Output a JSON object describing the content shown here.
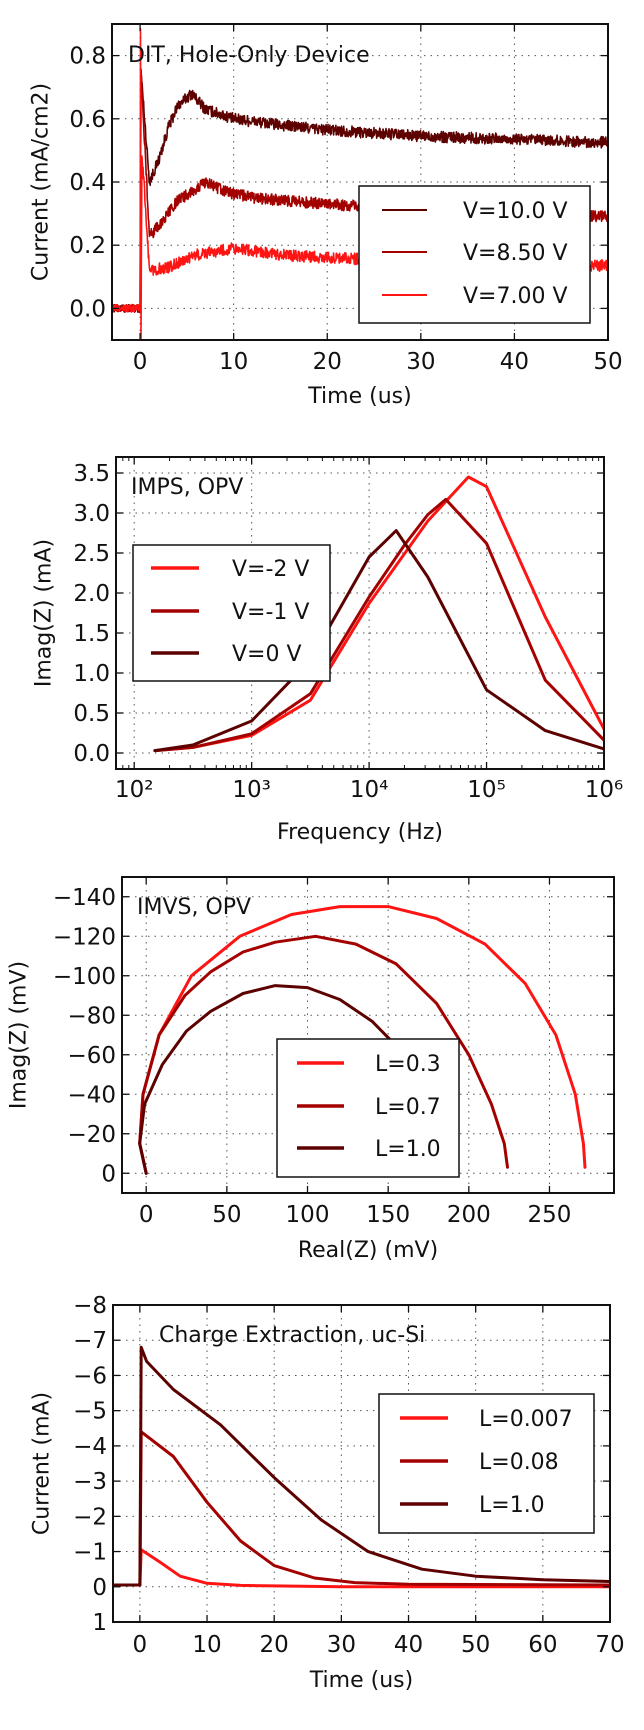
{
  "colors": {
    "dark": "#5c0000",
    "medium": "#a30000",
    "bright": "#ff1414"
  },
  "chart_data": [
    {
      "type": "line",
      "annotation": "DIT, Hole-Only Device",
      "xlabel": "Time (us)",
      "ylabel": "Current (mA/cm2)",
      "xlim": [
        -3,
        50
      ],
      "ylim": [
        -0.1,
        0.9
      ],
      "xticks": [
        0,
        10,
        20,
        30,
        40,
        50
      ],
      "xtick_labels": [
        "0",
        "10",
        "20",
        "30",
        "40",
        "50"
      ],
      "yticks": [
        0.0,
        0.2,
        0.4,
        0.6,
        0.8
      ],
      "ytick_labels": [
        "0.0",
        "0.2",
        "0.4",
        "0.6",
        "0.8"
      ],
      "grid": true,
      "legend_placement": "lower right",
      "series": [
        {
          "name": "V=10.0 V",
          "color": "dark",
          "noisy": true,
          "points": [
            [
              -3,
              0
            ],
            [
              0,
              0
            ],
            [
              0.1,
              0.75
            ],
            [
              1,
              0.4
            ],
            [
              2,
              0.47
            ],
            [
              3,
              0.57
            ],
            [
              4,
              0.64
            ],
            [
              5.5,
              0.68
            ],
            [
              7,
              0.63
            ],
            [
              10,
              0.6
            ],
            [
              15,
              0.58
            ],
            [
              20,
              0.565
            ],
            [
              30,
              0.545
            ],
            [
              40,
              0.535
            ],
            [
              50,
              0.525
            ]
          ]
        },
        {
          "name": "V=8.50 V",
          "color": "medium",
          "noisy": true,
          "points": [
            [
              -3,
              0
            ],
            [
              0,
              0
            ],
            [
              0.1,
              0.75
            ],
            [
              1,
              0.23
            ],
            [
              2,
              0.26
            ],
            [
              4,
              0.34
            ],
            [
              7,
              0.4
            ],
            [
              9,
              0.37
            ],
            [
              12,
              0.35
            ],
            [
              20,
              0.33
            ],
            [
              30,
              0.31
            ],
            [
              40,
              0.3
            ],
            [
              50,
              0.29
            ]
          ]
        },
        {
          "name": "V=7.00 V",
          "color": "bright",
          "noisy": true,
          "points": [
            [
              -3,
              0
            ],
            [
              0,
              0
            ],
            [
              0.05,
              0.9
            ],
            [
              0.1,
              -0.1
            ],
            [
              0.2,
              0.5
            ],
            [
              1,
              0.12
            ],
            [
              3,
              0.13
            ],
            [
              6,
              0.17
            ],
            [
              10,
              0.19
            ],
            [
              15,
              0.17
            ],
            [
              20,
              0.16
            ],
            [
              30,
              0.15
            ],
            [
              40,
              0.14
            ],
            [
              50,
              0.135
            ]
          ]
        }
      ]
    },
    {
      "type": "line",
      "annotation": "IMPS, OPV",
      "xlabel": "Frequency (Hz)",
      "ylabel": "Imag(Z) (mA)",
      "xscale": "log",
      "xlim": [
        70,
        1000000
      ],
      "ylim": [
        -0.2,
        3.7
      ],
      "xticks": [
        100,
        1000,
        10000,
        100000,
        1000000
      ],
      "xtick_labels": [
        "10²",
        "10³",
        "10⁴",
        "10⁵",
        "10⁶"
      ],
      "yticks": [
        0.0,
        0.5,
        1.0,
        1.5,
        2.0,
        2.5,
        3.0,
        3.5
      ],
      "ytick_labels": [
        "0.0",
        "0.5",
        "1.0",
        "1.5",
        "2.0",
        "2.5",
        "3.0",
        "3.5"
      ],
      "grid": true,
      "legend_placement": "center left",
      "series": [
        {
          "name": "V=-2 V",
          "color": "bright",
          "points": [
            [
              150,
              0.03
            ],
            [
              316,
              0.07
            ],
            [
              1000,
              0.22
            ],
            [
              3162,
              0.66
            ],
            [
              10000,
              1.87
            ],
            [
              31623,
              2.9
            ],
            [
              70000,
              3.45
            ],
            [
              100000,
              3.33
            ],
            [
              316228,
              1.7
            ],
            [
              1000000,
              0.3
            ]
          ]
        },
        {
          "name": "V=-1 V",
          "color": "medium",
          "points": [
            [
              150,
              0.03
            ],
            [
              316,
              0.07
            ],
            [
              1000,
              0.24
            ],
            [
              3162,
              0.74
            ],
            [
              10000,
              1.95
            ],
            [
              20000,
              2.6
            ],
            [
              31623,
              2.98
            ],
            [
              45000,
              3.17
            ],
            [
              100000,
              2.62
            ],
            [
              316228,
              0.91
            ],
            [
              1000000,
              0.16
            ]
          ]
        },
        {
          "name": "V=0 V",
          "color": "dark",
          "points": [
            [
              150,
              0.03
            ],
            [
              316,
              0.1
            ],
            [
              1000,
              0.4
            ],
            [
              3162,
              1.16
            ],
            [
              10000,
              2.45
            ],
            [
              17000,
              2.78
            ],
            [
              31623,
              2.2
            ],
            [
              100000,
              0.79
            ],
            [
              316228,
              0.28
            ],
            [
              1000000,
              0.05
            ]
          ]
        }
      ]
    },
    {
      "type": "line",
      "annotation": "IMVS, OPV",
      "xlabel": "Real(Z) (mV)",
      "ylabel": "Imag(Z) (mV)",
      "xlim": [
        -15,
        290
      ],
      "ylim": [
        10,
        -150
      ],
      "xticks": [
        0,
        50,
        100,
        150,
        200,
        250
      ],
      "xtick_labels": [
        "0",
        "50",
        "100",
        "150",
        "200",
        "250"
      ],
      "yticks": [
        0,
        -20,
        -40,
        -60,
        -80,
        -100,
        -120,
        -140
      ],
      "ytick_labels": [
        "0",
        "−20",
        "−40",
        "−60",
        "−80",
        "−100",
        "−120",
        "−140"
      ],
      "grid": true,
      "legend_placement": "lower center",
      "series": [
        {
          "name": "L=0.3",
          "color": "bright",
          "points": [
            [
              0,
              0
            ],
            [
              -4,
              -15
            ],
            [
              -2,
              -40
            ],
            [
              8,
              -70
            ],
            [
              28,
              -100
            ],
            [
              58,
              -120
            ],
            [
              90,
              -131
            ],
            [
              120,
              -135
            ],
            [
              150,
              -135
            ],
            [
              180,
              -129
            ],
            [
              210,
              -116
            ],
            [
              235,
              -96
            ],
            [
              254,
              -70
            ],
            [
              266,
              -40
            ],
            [
              271,
              -15
            ],
            [
              272,
              -3
            ]
          ]
        },
        {
          "name": "L=0.7",
          "color": "medium",
          "points": [
            [
              0,
              0
            ],
            [
              -4,
              -15
            ],
            [
              -2,
              -40
            ],
            [
              8,
              -70
            ],
            [
              24,
              -90
            ],
            [
              40,
              -102
            ],
            [
              60,
              -112
            ],
            [
              80,
              -117
            ],
            [
              105,
              -120
            ],
            [
              130,
              -116
            ],
            [
              155,
              -106
            ],
            [
              180,
              -86
            ],
            [
              200,
              -60
            ],
            [
              214,
              -35
            ],
            [
              222,
              -15
            ],
            [
              224,
              -3
            ]
          ]
        },
        {
          "name": "L=1.0",
          "color": "dark",
          "points": [
            [
              0,
              0
            ],
            [
              -4,
              -15
            ],
            [
              -1,
              -35
            ],
            [
              10,
              -55
            ],
            [
              25,
              -72
            ],
            [
              40,
              -82
            ],
            [
              60,
              -91
            ],
            [
              80,
              -95
            ],
            [
              100,
              -94
            ],
            [
              120,
              -88
            ],
            [
              140,
              -77
            ],
            [
              152,
              -67
            ]
          ]
        }
      ]
    },
    {
      "type": "line",
      "annotation": "Charge Extraction, uc-Si",
      "xlabel": "Time (us)",
      "ylabel": "Current (mA)",
      "xlim": [
        -4,
        70
      ],
      "ylim": [
        1,
        -8
      ],
      "xticks": [
        0,
        10,
        20,
        30,
        40,
        50,
        60,
        70
      ],
      "xtick_labels": [
        "0",
        "10",
        "20",
        "30",
        "40",
        "50",
        "60",
        "70"
      ],
      "yticks": [
        1,
        0,
        -1,
        -2,
        -3,
        -4,
        -5,
        -6,
        -7,
        -8
      ],
      "ytick_labels": [
        "1",
        "0",
        "−1",
        "−2",
        "−3",
        "−4",
        "−5",
        "−6",
        "−7",
        "−8"
      ],
      "grid": true,
      "legend_placement": "center right",
      "series": [
        {
          "name": "L=0.007",
          "color": "bright",
          "points": [
            [
              -4,
              -0.05
            ],
            [
              0,
              -0.05
            ],
            [
              0.2,
              -1.05
            ],
            [
              3,
              -0.7
            ],
            [
              6,
              -0.3
            ],
            [
              10,
              -0.1
            ],
            [
              15,
              -0.04
            ],
            [
              30,
              0
            ],
            [
              70,
              0
            ]
          ]
        },
        {
          "name": "L=0.08",
          "color": "medium",
          "points": [
            [
              -4,
              -0.05
            ],
            [
              0,
              -0.05
            ],
            [
              0.2,
              -4.4
            ],
            [
              5,
              -3.7
            ],
            [
              10,
              -2.4
            ],
            [
              15,
              -1.3
            ],
            [
              20,
              -0.6
            ],
            [
              26,
              -0.25
            ],
            [
              32,
              -0.12
            ],
            [
              40,
              -0.07
            ],
            [
              70,
              -0.05
            ]
          ]
        },
        {
          "name": "L=1.0",
          "color": "dark",
          "points": [
            [
              -4,
              -0.05
            ],
            [
              0,
              -0.05
            ],
            [
              0.2,
              -6.8
            ],
            [
              1,
              -6.4
            ],
            [
              5,
              -5.6
            ],
            [
              12,
              -4.6
            ],
            [
              20,
              -3.1
            ],
            [
              27,
              -1.9
            ],
            [
              34,
              -1.0
            ],
            [
              42,
              -0.5
            ],
            [
              50,
              -0.3
            ],
            [
              60,
              -0.2
            ],
            [
              70,
              -0.15
            ]
          ]
        }
      ]
    }
  ]
}
